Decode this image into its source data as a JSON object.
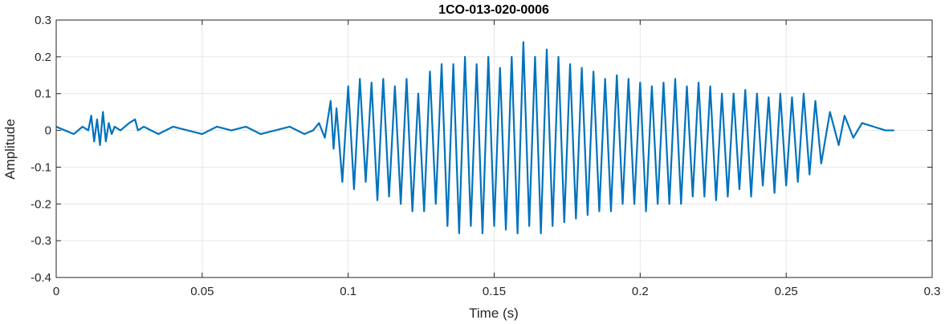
{
  "chart_data": {
    "type": "line",
    "title": "1CO-013-020-0006",
    "xlabel": "Time (s)",
    "ylabel": "Amplitude",
    "xlim": [
      0,
      0.3
    ],
    "ylim": [
      -0.4,
      0.3
    ],
    "xticks": [
      0,
      0.05,
      0.1,
      0.15,
      0.2,
      0.25,
      0.3
    ],
    "xtick_labels": [
      "0",
      "0.05",
      "0.1",
      "0.15",
      "0.2",
      "0.25",
      "0.3"
    ],
    "yticks": [
      -0.4,
      -0.3,
      -0.2,
      -0.1,
      0,
      0.1,
      0.2,
      0.3
    ],
    "ytick_labels": [
      "-0.4",
      "-0.3",
      "-0.2",
      "-0.1",
      "0",
      "0.1",
      "0.2",
      "0.3"
    ],
    "grid": true,
    "line_color": "#0072BD",
    "series": [
      {
        "name": "",
        "x": [
          0,
          0.003,
          0.006,
          0.009,
          0.011,
          0.012,
          0.013,
          0.014,
          0.015,
          0.016,
          0.017,
          0.018,
          0.019,
          0.02,
          0.022,
          0.025,
          0.027,
          0.028,
          0.03,
          0.035,
          0.04,
          0.045,
          0.05,
          0.055,
          0.06,
          0.065,
          0.07,
          0.075,
          0.08,
          0.085,
          0.088,
          0.09,
          0.092,
          0.094,
          0.095,
          0.096,
          0.098,
          0.1,
          0.102,
          0.104,
          0.106,
          0.108,
          0.11,
          0.112,
          0.114,
          0.116,
          0.118,
          0.12,
          0.122,
          0.124,
          0.126,
          0.128,
          0.13,
          0.132,
          0.134,
          0.136,
          0.138,
          0.14,
          0.142,
          0.144,
          0.146,
          0.148,
          0.15,
          0.152,
          0.154,
          0.156,
          0.158,
          0.16,
          0.162,
          0.164,
          0.166,
          0.168,
          0.17,
          0.172,
          0.174,
          0.176,
          0.178,
          0.18,
          0.182,
          0.184,
          0.186,
          0.188,
          0.19,
          0.192,
          0.194,
          0.196,
          0.198,
          0.2,
          0.202,
          0.204,
          0.206,
          0.208,
          0.21,
          0.212,
          0.214,
          0.216,
          0.218,
          0.22,
          0.222,
          0.224,
          0.226,
          0.228,
          0.23,
          0.232,
          0.234,
          0.236,
          0.238,
          0.24,
          0.242,
          0.244,
          0.246,
          0.248,
          0.25,
          0.252,
          0.254,
          0.256,
          0.258,
          0.26,
          0.262,
          0.265,
          0.268,
          0.27,
          0.273,
          0.276,
          0.28,
          0.284,
          0.287
        ],
        "y": [
          0.01,
          0.0,
          -0.01,
          0.01,
          0.0,
          0.04,
          -0.03,
          0.03,
          -0.04,
          0.05,
          -0.03,
          0.02,
          -0.01,
          0.01,
          0.0,
          0.02,
          0.03,
          0.0,
          0.01,
          -0.01,
          0.01,
          0.0,
          -0.01,
          0.01,
          0.0,
          0.01,
          -0.01,
          0.0,
          0.01,
          -0.01,
          0.0,
          0.02,
          -0.02,
          0.08,
          -0.05,
          0.06,
          -0.14,
          0.12,
          -0.16,
          0.14,
          -0.14,
          0.13,
          -0.19,
          0.14,
          -0.18,
          0.12,
          -0.2,
          0.14,
          -0.22,
          0.1,
          -0.22,
          0.16,
          -0.2,
          0.18,
          -0.26,
          0.18,
          -0.28,
          0.2,
          -0.26,
          0.18,
          -0.28,
          0.2,
          -0.26,
          0.17,
          -0.27,
          0.2,
          -0.28,
          0.24,
          -0.26,
          0.2,
          -0.28,
          0.22,
          -0.26,
          0.2,
          -0.25,
          0.18,
          -0.24,
          0.17,
          -0.23,
          0.16,
          -0.22,
          0.14,
          -0.22,
          0.15,
          -0.2,
          0.14,
          -0.2,
          0.13,
          -0.22,
          0.12,
          -0.2,
          0.13,
          -0.2,
          0.14,
          -0.2,
          0.12,
          -0.18,
          0.13,
          -0.18,
          0.12,
          -0.19,
          0.1,
          -0.18,
          0.1,
          -0.16,
          0.11,
          -0.18,
          0.1,
          -0.15,
          0.09,
          -0.17,
          0.1,
          -0.15,
          0.09,
          -0.14,
          0.1,
          -0.12,
          0.08,
          -0.09,
          0.05,
          -0.04,
          0.04,
          -0.02,
          0.02,
          0.01,
          0.0,
          0.0
        ]
      }
    ]
  }
}
